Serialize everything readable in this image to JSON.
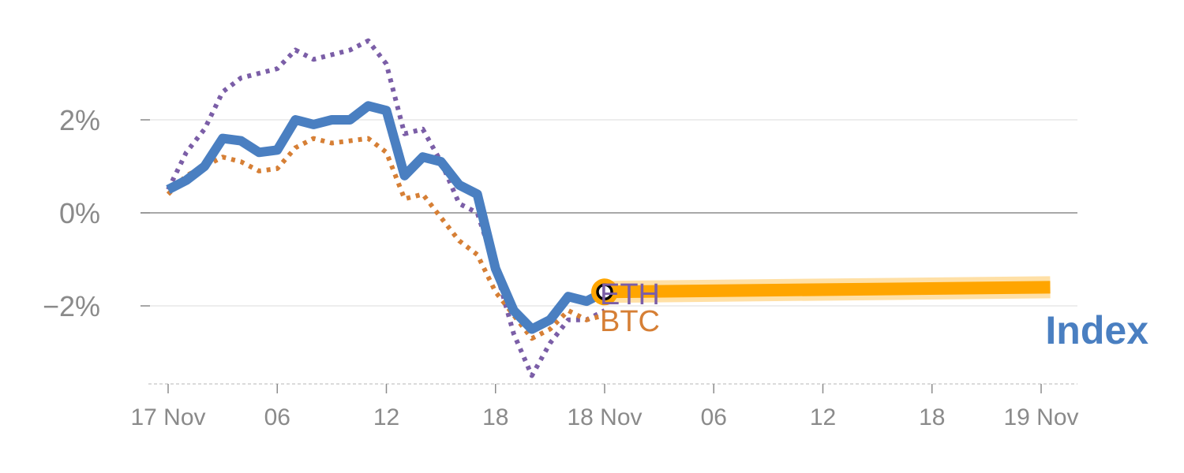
{
  "chart_data": {
    "type": "line",
    "x_start": "17 Nov 00:00",
    "x_tick_labels": [
      "17 Nov",
      "06",
      "12",
      "18",
      "18 Nov",
      "06",
      "12",
      "18",
      "19 Nov"
    ],
    "x_tick_hours": [
      0,
      6,
      12,
      18,
      24,
      30,
      36,
      42,
      48
    ],
    "xlim_hours": [
      -1,
      50
    ],
    "y_tick_labels": [
      "2%",
      "0%",
      "−2%"
    ],
    "y_ticks": [
      2,
      0,
      -2
    ],
    "ylim": [
      -3.7,
      4.5
    ],
    "series": [
      {
        "name": "ETH",
        "color": "#7b5ea7",
        "style": "dotted",
        "x": [
          0,
          1,
          2,
          3,
          4,
          5,
          6,
          7,
          8,
          9,
          10,
          11,
          12,
          13,
          14,
          15,
          16,
          17,
          18,
          19,
          20,
          21,
          22,
          23,
          24
        ],
        "y": [
          0.5,
          1.3,
          1.8,
          2.6,
          2.9,
          3.0,
          3.1,
          3.5,
          3.3,
          3.4,
          3.5,
          3.7,
          3.2,
          1.7,
          1.8,
          1.1,
          0.2,
          0.0,
          -1.2,
          -2.6,
          -3.5,
          -2.8,
          -2.3,
          -2.3,
          -2.1
        ]
      },
      {
        "name": "BTC",
        "color": "#d67f35",
        "style": "dotted",
        "x": [
          0,
          1,
          2,
          3,
          4,
          5,
          6,
          7,
          8,
          9,
          10,
          11,
          12,
          13,
          14,
          15,
          16,
          17,
          18,
          19,
          20,
          21,
          22,
          23,
          24
        ],
        "y": [
          0.4,
          0.8,
          1.0,
          1.2,
          1.1,
          0.9,
          0.95,
          1.4,
          1.6,
          1.5,
          1.55,
          1.6,
          1.3,
          0.3,
          0.4,
          -0.1,
          -0.6,
          -0.9,
          -1.7,
          -2.2,
          -2.7,
          -2.5,
          -2.1,
          -2.3,
          -2.2
        ]
      },
      {
        "name": "Index",
        "color": "#4a7fc1",
        "style": "solid",
        "x": [
          0,
          1,
          2,
          3,
          4,
          5,
          6,
          7,
          8,
          9,
          10,
          11,
          12,
          13,
          14,
          15,
          16,
          17,
          18,
          19,
          20,
          21,
          22,
          23,
          24
        ],
        "y": [
          0.5,
          0.7,
          1.0,
          1.6,
          1.55,
          1.3,
          1.35,
          2.0,
          1.9,
          2.0,
          2.0,
          2.3,
          2.2,
          0.8,
          1.2,
          1.1,
          0.6,
          0.4,
          -1.2,
          -2.1,
          -2.5,
          -2.3,
          -1.8,
          -1.9,
          -1.7
        ]
      }
    ],
    "highlight": {
      "color": "#ffa500",
      "x": [
        24,
        48.5
      ],
      "y": [
        -1.7,
        -1.6
      ]
    },
    "labels": {
      "eth": "ETH",
      "btc": "BTC",
      "index": "Index"
    }
  }
}
